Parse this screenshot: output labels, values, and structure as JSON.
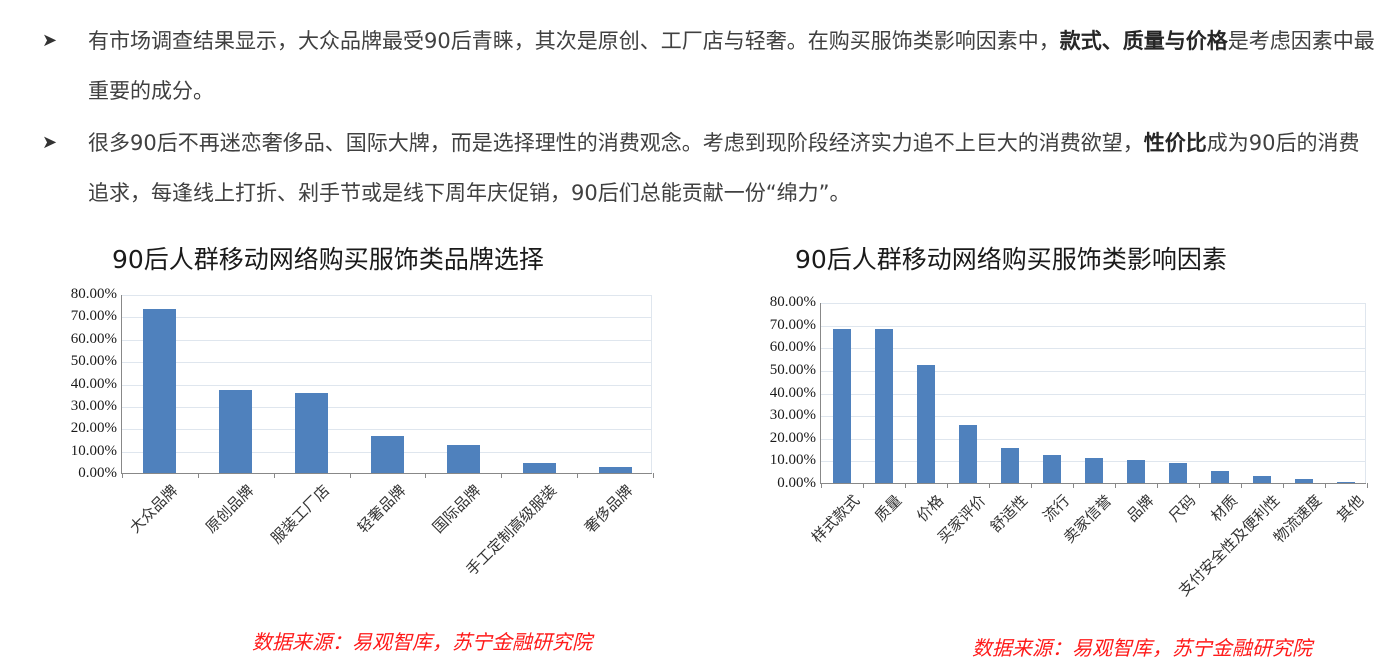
{
  "bullets": [
    {
      "icon": "arrow-bullet-icon",
      "segments": [
        {
          "text": "有市场调查结果显示，大众品牌最受90后青睐，其次是原创、工厂店与轻奢。在购买服饰类影响因素中，",
          "bold": false
        },
        {
          "text": "款式、质量与价格",
          "bold": true
        },
        {
          "text": "是考虑因素中最重要的成分。",
          "bold": false
        }
      ]
    },
    {
      "icon": "arrow-bullet-icon",
      "segments": [
        {
          "text": "很多90后不再迷恋奢侈品、国际大牌，而是选择理性的消费观念。考虑到现阶段经济实力追不上巨大的消费欲望，",
          "bold": false
        },
        {
          "text": "性价比",
          "bold": true
        },
        {
          "text": "成为90后的消费追求，每逢线上打折、剁手节或是线下周年庆促销，90后们总能贡献一份“绵力”。",
          "bold": false
        }
      ]
    }
  ],
  "chart_data": [
    {
      "type": "bar",
      "title": "90后人群移动网络购买服饰类品牌选择",
      "categories": [
        "大众品牌",
        "原创品牌",
        "服装工厂店",
        "轻奢品牌",
        "国际品牌",
        "手工定制高级服装",
        "奢侈品牌"
      ],
      "values": [
        73.2,
        37.0,
        35.8,
        16.5,
        12.5,
        4.5,
        2.7
      ],
      "unit": "%",
      "xlabel": "",
      "ylabel": "",
      "ylim": [
        0,
        80
      ],
      "yticks": [
        "0.00%",
        "10.00%",
        "20.00%",
        "30.00%",
        "40.00%",
        "50.00%",
        "60.00%",
        "70.00%",
        "80.00%"
      ],
      "grid": true,
      "legend": null,
      "color": "#4f81bd",
      "source": "数据来源：易观智库，苏宁金融研究院"
    },
    {
      "type": "bar",
      "title": "90后人群移动网络购买服饰类影响因素",
      "categories": [
        "样式款式",
        "质量",
        "价格",
        "买家评价",
        "舒适性",
        "流行",
        "卖家信誉",
        "品牌",
        "尺码",
        "材质",
        "支付安全性及便利性",
        "物流速度",
        "其他"
      ],
      "values": [
        68.1,
        68.0,
        52.2,
        25.7,
        15.5,
        12.3,
        11.0,
        10.2,
        8.8,
        5.4,
        3.0,
        1.8,
        0.5
      ],
      "unit": "%",
      "xlabel": "",
      "ylabel": "",
      "ylim": [
        0,
        80
      ],
      "yticks": [
        "0.00%",
        "10.00%",
        "20.00%",
        "30.00%",
        "40.00%",
        "50.00%",
        "60.00%",
        "70.00%",
        "80.00%"
      ],
      "grid": true,
      "legend": null,
      "color": "#4f81bd",
      "source": "数据来源：易观智库，苏宁金融研究院"
    }
  ],
  "colors": {
    "bar": "#4f81bd",
    "source_text": "#ff1a1a",
    "gridline": "#dfe6ee"
  }
}
